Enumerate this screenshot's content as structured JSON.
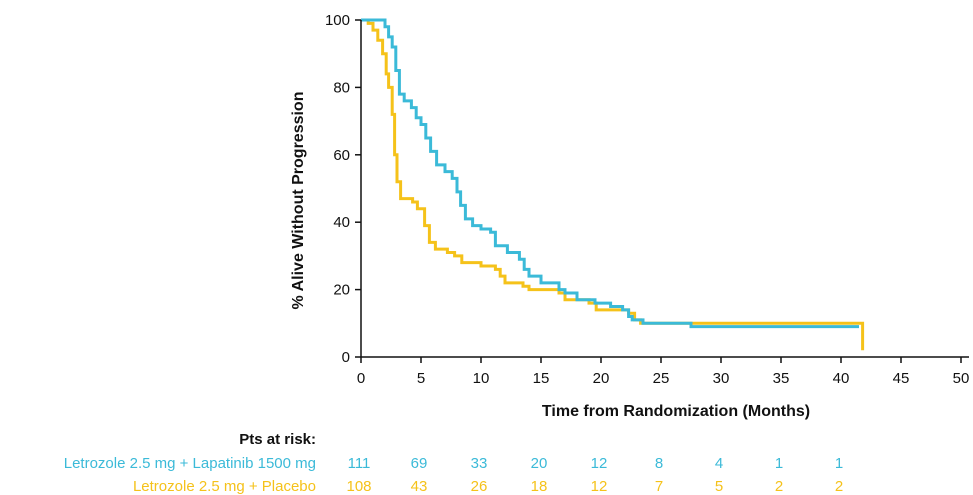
{
  "chart_data": {
    "type": "line",
    "subtype": "kaplan-meier-step",
    "xlabel": "Time from Randomization (Months)",
    "ylabel": "% Alive Without Progression",
    "xlim": [
      0,
      50
    ],
    "ylim": [
      0,
      100
    ],
    "x_ticks": [
      0,
      5,
      10,
      15,
      20,
      25,
      30,
      35,
      40,
      45,
      50
    ],
    "y_ticks": [
      0,
      20,
      40,
      60,
      80,
      100
    ],
    "grid": false,
    "legend": "none",
    "series": [
      {
        "color": "#3bbad8",
        "points": [
          [
            0,
            100
          ],
          [
            1.5,
            100
          ],
          [
            2.0,
            98
          ],
          [
            2.3,
            95
          ],
          [
            2.6,
            92
          ],
          [
            2.9,
            85
          ],
          [
            3.2,
            78
          ],
          [
            3.6,
            76
          ],
          [
            4.2,
            74
          ],
          [
            4.6,
            71
          ],
          [
            5.0,
            69
          ],
          [
            5.4,
            65
          ],
          [
            5.8,
            61
          ],
          [
            6.3,
            57
          ],
          [
            7.0,
            55
          ],
          [
            7.6,
            53
          ],
          [
            8.0,
            49
          ],
          [
            8.3,
            45
          ],
          [
            8.7,
            41
          ],
          [
            9.3,
            39
          ],
          [
            10.0,
            38
          ],
          [
            10.8,
            37
          ],
          [
            11.2,
            33
          ],
          [
            12.2,
            31
          ],
          [
            13.2,
            29
          ],
          [
            13.6,
            26
          ],
          [
            14.0,
            24
          ],
          [
            15.0,
            22
          ],
          [
            16.5,
            20
          ],
          [
            17.0,
            19
          ],
          [
            18.0,
            17
          ],
          [
            19.5,
            16
          ],
          [
            20.8,
            15
          ],
          [
            21.8,
            14
          ],
          [
            22.3,
            12
          ],
          [
            22.6,
            11
          ],
          [
            23.5,
            10
          ],
          [
            27.5,
            9
          ],
          [
            41.5,
            9
          ]
        ]
      },
      {
        "color": "#f5c21a",
        "points": [
          [
            0,
            100
          ],
          [
            0.6,
            99
          ],
          [
            1.0,
            97
          ],
          [
            1.4,
            94
          ],
          [
            1.8,
            90
          ],
          [
            2.1,
            84
          ],
          [
            2.3,
            80
          ],
          [
            2.6,
            72
          ],
          [
            2.8,
            60
          ],
          [
            3.0,
            52
          ],
          [
            3.3,
            47
          ],
          [
            4.3,
            46
          ],
          [
            4.7,
            44
          ],
          [
            5.3,
            39
          ],
          [
            5.7,
            34
          ],
          [
            6.2,
            32
          ],
          [
            7.2,
            31
          ],
          [
            7.8,
            30
          ],
          [
            8.4,
            28
          ],
          [
            10.0,
            27
          ],
          [
            11.2,
            26
          ],
          [
            11.6,
            24
          ],
          [
            12.0,
            22
          ],
          [
            13.5,
            21
          ],
          [
            14.0,
            20
          ],
          [
            16.5,
            19
          ],
          [
            17.0,
            17
          ],
          [
            19.0,
            16
          ],
          [
            19.6,
            14
          ],
          [
            22.3,
            13
          ],
          [
            22.8,
            11
          ],
          [
            23.3,
            10
          ],
          [
            41.8,
            10
          ],
          [
            41.8,
            2
          ]
        ]
      }
    ],
    "risk_table": {
      "title": "Pts at risk:",
      "times": [
        0,
        5,
        10,
        15,
        20,
        25,
        30,
        35,
        40
      ],
      "rows": [
        {
          "label": "Letrozole 2.5 mg + Lapatinib 1500 mg",
          "color": "#3bbad8",
          "values": [
            "111",
            "69",
            "33",
            "20",
            "12",
            "8",
            "4",
            "1",
            "1"
          ]
        },
        {
          "label": "Letrozole 2.5 mg + Placebo",
          "color": "#f5c21a",
          "values": [
            "108",
            "43",
            "26",
            "18",
            "12",
            "7",
            "5",
            "2",
            "2"
          ]
        }
      ]
    }
  }
}
